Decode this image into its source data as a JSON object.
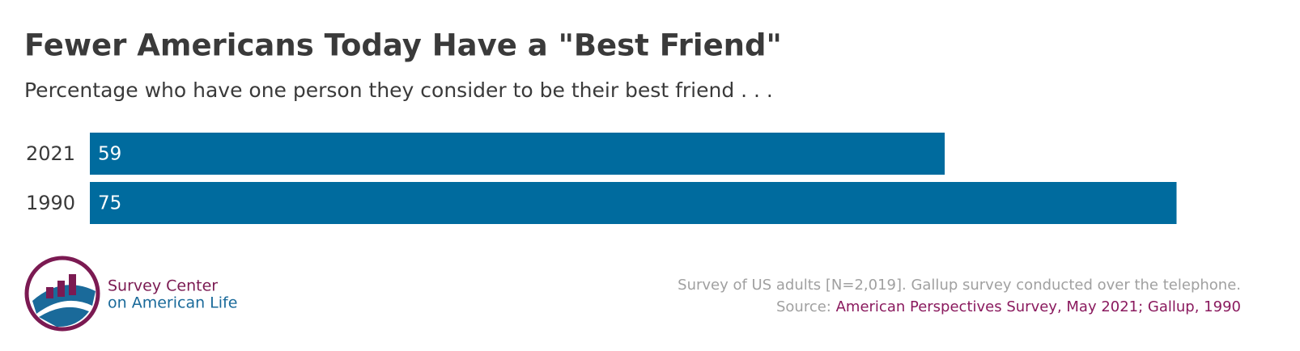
{
  "chart_data": {
    "type": "bar",
    "orientation": "horizontal",
    "title": "Fewer Americans Today Have a \"Best Friend\"",
    "subtitle": "Percentage who have one person they consider to be their best friend . . .",
    "categories": [
      "2021",
      "1990"
    ],
    "values": [
      59,
      75
    ],
    "color": "#006b9e",
    "note": "Survey of US adults [N=2,019]. Gallup survey conducted over the telephone.",
    "source_label": "Source:",
    "source": "American Perspectives Survey, May 2021; Gallup, 1990"
  },
  "logo": {
    "line1": "Survey Center",
    "line2": "on American Life"
  }
}
